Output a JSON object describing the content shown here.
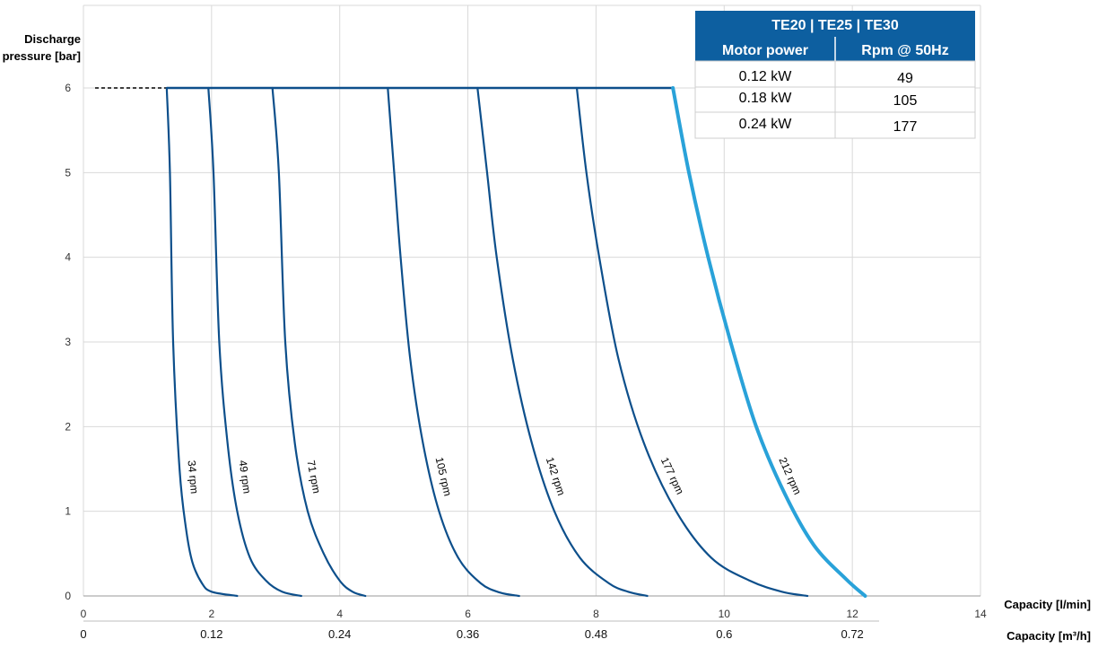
{
  "chart_data": {
    "type": "line",
    "ylabel_lines": [
      "Discharge",
      "pressure [bar]"
    ],
    "xlabel": "Capacity [l/min]",
    "x2label": "Capacity [m³/h]",
    "xlim": [
      0,
      14
    ],
    "ylim": [
      0,
      6
    ],
    "x_ticks": [
      "0",
      "2",
      "4",
      "6",
      "8",
      "10",
      "12",
      "14"
    ],
    "x2_ticks": [
      "0",
      "0.12",
      "0.24",
      "0.36",
      "0.48",
      "0.6",
      "0.72"
    ],
    "y_ticks": [
      "0",
      "1",
      "2",
      "3",
      "4",
      "5",
      "6"
    ],
    "grid": "vertical and horizontal",
    "max_pressure_line": {
      "x": [
        0,
        1.3
      ],
      "y": 6,
      "style": "dashed"
    },
    "top_line": {
      "x": [
        1.3,
        9.2
      ],
      "y": 6
    },
    "colors": {
      "curves": "#0d4f8b",
      "highlight": "#29a2d9",
      "table_header": "#0d5fa0"
    },
    "series": [
      {
        "name": "34 rpm",
        "color": "#0d4f8b",
        "points": [
          [
            1.3,
            6.0
          ],
          [
            1.35,
            5.0
          ],
          [
            1.4,
            3.0
          ],
          [
            1.5,
            1.5
          ],
          [
            1.6,
            0.8
          ],
          [
            1.7,
            0.4
          ],
          [
            1.85,
            0.15
          ],
          [
            2.0,
            0.05
          ],
          [
            2.4,
            0.0
          ]
        ]
      },
      {
        "name": "49 rpm",
        "color": "#0d4f8b",
        "points": [
          [
            1.95,
            6.0
          ],
          [
            2.03,
            5.0
          ],
          [
            2.12,
            3.0
          ],
          [
            2.25,
            1.8
          ],
          [
            2.4,
            1.0
          ],
          [
            2.6,
            0.45
          ],
          [
            2.85,
            0.18
          ],
          [
            3.1,
            0.05
          ],
          [
            3.4,
            0.0
          ]
        ]
      },
      {
        "name": "71 rpm",
        "color": "#0d4f8b",
        "points": [
          [
            2.95,
            6.0
          ],
          [
            3.05,
            5.0
          ],
          [
            3.15,
            3.0
          ],
          [
            3.3,
            1.8
          ],
          [
            3.5,
            1.0
          ],
          [
            3.75,
            0.5
          ],
          [
            4.0,
            0.18
          ],
          [
            4.2,
            0.05
          ],
          [
            4.4,
            0.0
          ]
        ]
      },
      {
        "name": "105 rpm",
        "color": "#0d4f8b",
        "points": [
          [
            4.75,
            6.0
          ],
          [
            4.85,
            5.0
          ],
          [
            4.95,
            4.0
          ],
          [
            5.1,
            2.8
          ],
          [
            5.3,
            1.8
          ],
          [
            5.55,
            1.0
          ],
          [
            5.85,
            0.45
          ],
          [
            6.2,
            0.15
          ],
          [
            6.5,
            0.04
          ],
          [
            6.8,
            0.0
          ]
        ]
      },
      {
        "name": "142 rpm",
        "color": "#0d4f8b",
        "points": [
          [
            6.15,
            6.0
          ],
          [
            6.3,
            5.0
          ],
          [
            6.45,
            4.0
          ],
          [
            6.7,
            2.8
          ],
          [
            7.0,
            1.8
          ],
          [
            7.35,
            1.0
          ],
          [
            7.75,
            0.45
          ],
          [
            8.2,
            0.15
          ],
          [
            8.5,
            0.05
          ],
          [
            8.8,
            0.0
          ]
        ]
      },
      {
        "name": "177 rpm",
        "color": "#0d4f8b",
        "points": [
          [
            7.7,
            6.0
          ],
          [
            7.85,
            5.0
          ],
          [
            8.05,
            4.0
          ],
          [
            8.35,
            2.8
          ],
          [
            8.75,
            1.8
          ],
          [
            9.25,
            1.0
          ],
          [
            9.8,
            0.45
          ],
          [
            10.4,
            0.18
          ],
          [
            10.9,
            0.05
          ],
          [
            11.3,
            0.0
          ]
        ]
      },
      {
        "name": "212 rpm",
        "color": "#29a2d9",
        "points": [
          [
            9.2,
            6.0
          ],
          [
            9.45,
            5.0
          ],
          [
            9.75,
            4.0
          ],
          [
            10.1,
            3.0
          ],
          [
            10.5,
            2.0
          ],
          [
            10.95,
            1.2
          ],
          [
            11.4,
            0.6
          ],
          [
            11.9,
            0.2
          ],
          [
            12.2,
            0.0
          ]
        ]
      }
    ]
  },
  "table": {
    "title": "TE20 | TE25 | TE30",
    "headers": [
      "Motor power",
      "Rpm @ 50Hz"
    ],
    "rows": [
      [
        "0.12 kW",
        "49"
      ],
      [
        "0.18 kW",
        "105"
      ],
      [
        "0.24 kW",
        "177"
      ]
    ]
  }
}
